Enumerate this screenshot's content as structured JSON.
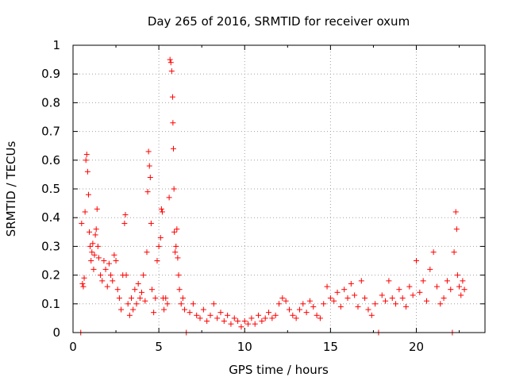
{
  "chart_data": {
    "type": "scatter",
    "title": "Day 265 of 2016, SRMTID for receiver oxum",
    "xlabel": "GPS time / hours",
    "ylabel": "SRMTID / TECUs",
    "xlim": [
      0,
      24
    ],
    "ylim": [
      0,
      1
    ],
    "xticks": [
      0,
      5,
      10,
      15,
      20
    ],
    "xtick_labels": [
      "0",
      "5",
      "10",
      "15",
      "20"
    ],
    "yticks": [
      0,
      0.1,
      0.2,
      0.3,
      0.4,
      0.5,
      0.6,
      0.7,
      0.8,
      0.9,
      1
    ],
    "ytick_labels": [
      "0",
      "0.1",
      "0.2",
      "0.3",
      "0.4",
      "0.5",
      "0.6",
      "0.7",
      "0.8",
      "0.9",
      "1"
    ],
    "grid": true,
    "marker": "+",
    "series_color": "#ff0000",
    "series": [
      {
        "name": "SRMTID",
        "points": [
          [
            0.45,
            0.0
          ],
          [
            0.5,
            0.38
          ],
          [
            0.55,
            0.17
          ],
          [
            0.6,
            0.16
          ],
          [
            0.65,
            0.19
          ],
          [
            0.7,
            0.42
          ],
          [
            0.75,
            0.6
          ],
          [
            0.8,
            0.62
          ],
          [
            0.85,
            0.56
          ],
          [
            0.9,
            0.48
          ],
          [
            0.95,
            0.35
          ],
          [
            1.0,
            0.3
          ],
          [
            1.05,
            0.25
          ],
          [
            1.1,
            0.28
          ],
          [
            1.15,
            0.31
          ],
          [
            1.2,
            0.22
          ],
          [
            1.25,
            0.27
          ],
          [
            1.3,
            0.34
          ],
          [
            1.35,
            0.36
          ],
          [
            1.4,
            0.43
          ],
          [
            1.45,
            0.3
          ],
          [
            1.5,
            0.26
          ],
          [
            1.6,
            0.2
          ],
          [
            1.7,
            0.18
          ],
          [
            1.8,
            0.25
          ],
          [
            1.9,
            0.22
          ],
          [
            2.0,
            0.16
          ],
          [
            2.1,
            0.24
          ],
          [
            2.2,
            0.2
          ],
          [
            2.3,
            0.18
          ],
          [
            2.4,
            0.27
          ],
          [
            2.5,
            0.25
          ],
          [
            2.6,
            0.15
          ],
          [
            2.7,
            0.12
          ],
          [
            2.8,
            0.08
          ],
          [
            2.9,
            0.2
          ],
          [
            3.0,
            0.38
          ],
          [
            3.05,
            0.41
          ],
          [
            3.1,
            0.2
          ],
          [
            3.2,
            0.1
          ],
          [
            3.3,
            0.06
          ],
          [
            3.4,
            0.12
          ],
          [
            3.5,
            0.08
          ],
          [
            3.6,
            0.15
          ],
          [
            3.7,
            0.1
          ],
          [
            3.8,
            0.17
          ],
          [
            3.9,
            0.12
          ],
          [
            4.0,
            0.14
          ],
          [
            4.1,
            0.2
          ],
          [
            4.2,
            0.11
          ],
          [
            4.3,
            0.28
          ],
          [
            4.35,
            0.49
          ],
          [
            4.4,
            0.63
          ],
          [
            4.45,
            0.58
          ],
          [
            4.5,
            0.54
          ],
          [
            4.55,
            0.38
          ],
          [
            4.6,
            0.15
          ],
          [
            4.7,
            0.07
          ],
          [
            4.8,
            0.12
          ],
          [
            4.9,
            0.25
          ],
          [
            5.0,
            0.3
          ],
          [
            5.1,
            0.33
          ],
          [
            5.15,
            0.43
          ],
          [
            5.2,
            0.42
          ],
          [
            5.25,
            0.12
          ],
          [
            5.3,
            0.08
          ],
          [
            5.4,
            0.12
          ],
          [
            5.5,
            0.1
          ],
          [
            5.6,
            0.47
          ],
          [
            5.65,
            0.95
          ],
          [
            5.7,
            0.94
          ],
          [
            5.75,
            0.91
          ],
          [
            5.8,
            0.82
          ],
          [
            5.82,
            0.73
          ],
          [
            5.85,
            0.64
          ],
          [
            5.88,
            0.5
          ],
          [
            5.9,
            0.35
          ],
          [
            5.95,
            0.28
          ],
          [
            6.0,
            0.3
          ],
          [
            6.05,
            0.36
          ],
          [
            6.1,
            0.26
          ],
          [
            6.15,
            0.2
          ],
          [
            6.2,
            0.15
          ],
          [
            6.3,
            0.1
          ],
          [
            6.4,
            0.12
          ],
          [
            6.5,
            0.08
          ],
          [
            6.6,
            0.0
          ],
          [
            6.8,
            0.07
          ],
          [
            7.0,
            0.1
          ],
          [
            7.2,
            0.06
          ],
          [
            7.4,
            0.05
          ],
          [
            7.6,
            0.08
          ],
          [
            7.8,
            0.04
          ],
          [
            8.0,
            0.06
          ],
          [
            8.2,
            0.1
          ],
          [
            8.4,
            0.05
          ],
          [
            8.6,
            0.07
          ],
          [
            8.8,
            0.04
          ],
          [
            9.0,
            0.06
          ],
          [
            9.2,
            0.03
          ],
          [
            9.4,
            0.05
          ],
          [
            9.6,
            0.04
          ],
          [
            9.8,
            0.02
          ],
          [
            10.0,
            0.04
          ],
          [
            10.2,
            0.03
          ],
          [
            10.4,
            0.05
          ],
          [
            10.6,
            0.03
          ],
          [
            10.8,
            0.06
          ],
          [
            11.0,
            0.04
          ],
          [
            11.2,
            0.05
          ],
          [
            11.4,
            0.07
          ],
          [
            11.6,
            0.05
          ],
          [
            11.8,
            0.06
          ],
          [
            12.0,
            0.1
          ],
          [
            12.2,
            0.12
          ],
          [
            12.4,
            0.11
          ],
          [
            12.6,
            0.08
          ],
          [
            12.8,
            0.06
          ],
          [
            13.0,
            0.05
          ],
          [
            13.2,
            0.08
          ],
          [
            13.4,
            0.1
          ],
          [
            13.6,
            0.07
          ],
          [
            13.8,
            0.11
          ],
          [
            14.0,
            0.09
          ],
          [
            14.2,
            0.06
          ],
          [
            14.4,
            0.05
          ],
          [
            14.6,
            0.1
          ],
          [
            14.8,
            0.16
          ],
          [
            15.0,
            0.12
          ],
          [
            15.2,
            0.11
          ],
          [
            15.4,
            0.14
          ],
          [
            15.6,
            0.09
          ],
          [
            15.8,
            0.15
          ],
          [
            16.0,
            0.12
          ],
          [
            16.2,
            0.17
          ],
          [
            16.4,
            0.13
          ],
          [
            16.6,
            0.09
          ],
          [
            16.8,
            0.18
          ],
          [
            17.0,
            0.12
          ],
          [
            17.2,
            0.08
          ],
          [
            17.4,
            0.06
          ],
          [
            17.6,
            0.1
          ],
          [
            17.8,
            0.0
          ],
          [
            18.0,
            0.13
          ],
          [
            18.2,
            0.11
          ],
          [
            18.4,
            0.18
          ],
          [
            18.6,
            0.12
          ],
          [
            18.8,
            0.1
          ],
          [
            19.0,
            0.15
          ],
          [
            19.2,
            0.12
          ],
          [
            19.4,
            0.09
          ],
          [
            19.6,
            0.16
          ],
          [
            19.8,
            0.13
          ],
          [
            20.0,
            0.25
          ],
          [
            20.2,
            0.14
          ],
          [
            20.4,
            0.18
          ],
          [
            20.6,
            0.11
          ],
          [
            20.8,
            0.22
          ],
          [
            21.0,
            0.28
          ],
          [
            21.2,
            0.16
          ],
          [
            21.4,
            0.1
          ],
          [
            21.6,
            0.12
          ],
          [
            21.8,
            0.18
          ],
          [
            22.0,
            0.15
          ],
          [
            22.1,
            0.0
          ],
          [
            22.2,
            0.28
          ],
          [
            22.3,
            0.42
          ],
          [
            22.35,
            0.36
          ],
          [
            22.4,
            0.2
          ],
          [
            22.5,
            0.16
          ],
          [
            22.6,
            0.13
          ],
          [
            22.7,
            0.18
          ],
          [
            22.8,
            0.15
          ]
        ]
      }
    ]
  }
}
